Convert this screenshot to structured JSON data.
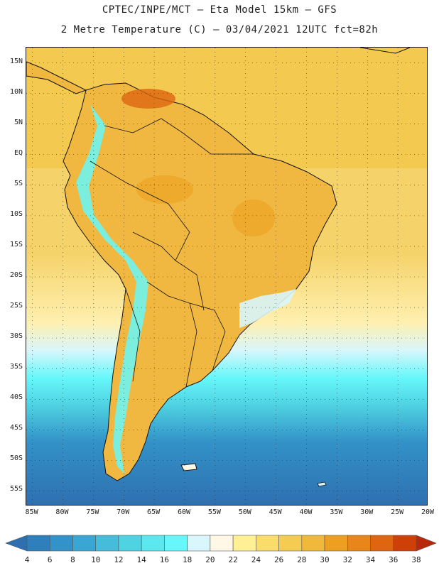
{
  "header": {
    "title_line1": "CPTEC/INPE/MCT –  Eta Model 15km – GFS",
    "title_line2": "2 Metre Temperature (C) – 03/04/2021 12UTC fct=82h"
  },
  "map": {
    "lat_labels": [
      "15N",
      "10N",
      "5N",
      "EQ",
      "5S",
      "10S",
      "15S",
      "20S",
      "25S",
      "30S",
      "35S",
      "40S",
      "45S",
      "50S",
      "55S"
    ],
    "lon_labels": [
      "85W",
      "80W",
      "75W",
      "70W",
      "65W",
      "60W",
      "55W",
      "50W",
      "45W",
      "40W",
      "35W",
      "30W",
      "25W",
      "20W"
    ],
    "lat_values": [
      15,
      10,
      5,
      0,
      -5,
      -10,
      -15,
      -20,
      -25,
      -30,
      -35,
      -40,
      -45,
      -50,
      -55
    ],
    "lon_values": [
      -85,
      -80,
      -75,
      -70,
      -65,
      -60,
      -55,
      -50,
      -45,
      -40,
      -35,
      -30,
      -25,
      -20
    ],
    "lat_range": [
      -57.5,
      17.5
    ],
    "lon_range": [
      -86,
      -20
    ],
    "ocean_color": "#f2c94a",
    "land_color": "#f0b840",
    "border_color": "#111111"
  },
  "colorbar": {
    "levels": [
      "4",
      "6",
      "8",
      "10",
      "12",
      "14",
      "16",
      "18",
      "20",
      "22",
      "24",
      "26",
      "28",
      "30",
      "32",
      "34",
      "36",
      "38"
    ],
    "colors": [
      "#2e6fb0",
      "#2f7fbd",
      "#3392c8",
      "#3aa6d3",
      "#45bcd9",
      "#4fd2e2",
      "#5ce8ef",
      "#66f7fa",
      "#d8f6fb",
      "#fff8e6",
      "#fff096",
      "#fadc6a",
      "#f5cc52",
      "#f0b93a",
      "#eda020",
      "#e8861a",
      "#df6510",
      "#cf3f08",
      "#b8280a"
    ]
  }
}
